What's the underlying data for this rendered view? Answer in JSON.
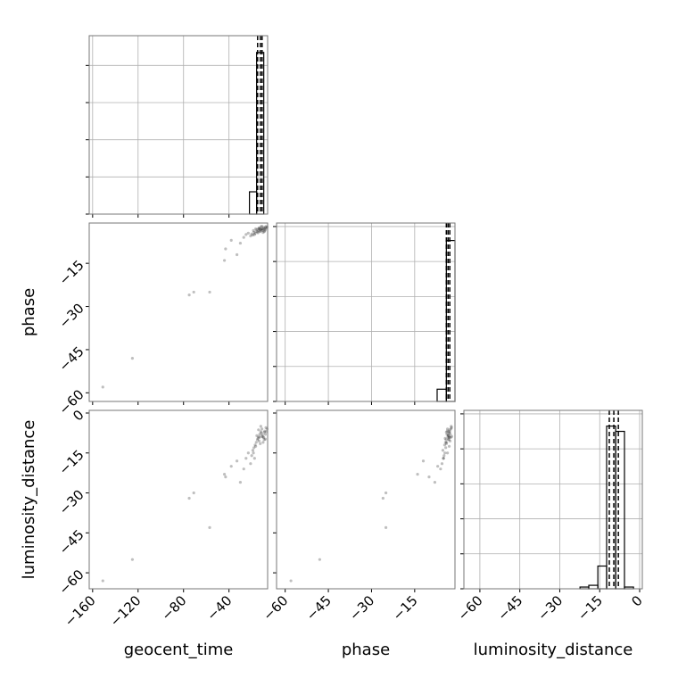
{
  "chart_data": {
    "type": "corner",
    "parameters": [
      {
        "name": "geocent_time",
        "lim": [
          -163,
          -6
        ],
        "ticks": [
          {
            "value": -160,
            "label": "−160"
          },
          {
            "value": -120,
            "label": "−120"
          },
          {
            "value": -80,
            "label": "−80"
          },
          {
            "value": -40,
            "label": "−40"
          }
        ]
      },
      {
        "name": "phase",
        "lim": [
          -63,
          -1
        ],
        "ticks": [
          {
            "value": -60,
            "label": "−60"
          },
          {
            "value": -45,
            "label": "−45"
          },
          {
            "value": -30,
            "label": "−30"
          },
          {
            "value": -15,
            "label": "−15"
          }
        ]
      },
      {
        "name": "luminosity_distance",
        "lim": [
          -66,
          1
        ],
        "ticks": [
          {
            "value": -60,
            "label": "−60"
          },
          {
            "value": -45,
            "label": "−45"
          },
          {
            "value": -30,
            "label": "−30"
          },
          {
            "value": -15,
            "label": "−15"
          },
          0
        ]
      }
    ],
    "samples": {
      "geocent_time": [
        -151,
        -125,
        -75,
        -71,
        -57,
        -44,
        -43,
        -38,
        -33,
        -30,
        -27,
        -25,
        -23,
        -21,
        -20,
        -19,
        -18,
        -17,
        -16,
        -15,
        -14,
        -13,
        -12,
        -11,
        -10,
        -9,
        -8,
        -7,
        -6.5,
        -15.5,
        -14.5,
        -13.5,
        -12.5,
        -11.5,
        -10.5,
        -9.5,
        -8.5,
        -7.5,
        -16.5,
        -18.5,
        -12,
        -10,
        -8,
        -14,
        -17.5,
        -11,
        -9,
        -13
      ],
      "phase": [
        -58,
        -48,
        -26,
        -25,
        -25,
        -14,
        -10,
        -7,
        -12,
        -8,
        -6,
        -5,
        -4.5,
        -5.5,
        -4.8,
        -5.2,
        -4.2,
        -4.6,
        -3.9,
        -4.1,
        -3.5,
        -3.8,
        -3.2,
        -3.6,
        -2.9,
        -3.1,
        -2.6,
        -2.8,
        -2.4,
        -3.3,
        -4.4,
        -2.7,
        -4.0,
        -3.0,
        -3.4,
        -2.5,
        -3.7,
        -2.2,
        -3.0,
        -3.6,
        -2.3,
        -4.3,
        -3.3,
        -2.9,
        -5.0,
        -2.1,
        -4.0,
        -3.1
      ],
      "luminosity_distance": [
        -63,
        -55,
        -32,
        -30,
        -43,
        -23,
        -24,
        -20,
        -18,
        -26,
        -21,
        -17,
        -15,
        -19,
        -16,
        -14,
        -13,
        -12,
        -11,
        -10,
        -9,
        -8,
        -7,
        -6,
        -9,
        -10,
        -8,
        -7,
        -6,
        -8.5,
        -9.5,
        -10.5,
        -11.5,
        -7.5,
        -8.2,
        -9.2,
        -6.8,
        -5.5,
        -12.5,
        -15,
        -5,
        -11,
        -9.8,
        -6.3,
        -17,
        -8.8,
        -7.2,
        -9.1
      ]
    },
    "histograms": [
      {
        "bins": [
          -22,
          -15.7,
          -9.4
        ],
        "counts": [
          12,
          87
        ],
        "ylim": [
          0,
          96
        ],
        "yticks": [
          0,
          20,
          40,
          60,
          80
        ],
        "quantiles": [
          -14.8,
          -12.4,
          -10.9
        ]
      },
      {
        "bins": [
          -7.2,
          -4.0,
          -1
        ],
        "counts": [
          7,
          92
        ],
        "ylim": [
          0,
          102
        ],
        "yticks": [
          0,
          20,
          40,
          60,
          80,
          100
        ],
        "quantiles": [
          -4,
          -3.4,
          -2.8
        ]
      },
      {
        "bins": [
          -22.4,
          -19.1,
          -15.7,
          -12.4,
          -9.0,
          -5.7,
          -2.3
        ],
        "counts": [
          1,
          2,
          13,
          93,
          90,
          1
        ],
        "ylim": [
          0,
          102
        ],
        "yticks": [
          0,
          20,
          40,
          60,
          80,
          100
        ],
        "quantiles": [
          -11.4,
          -9.7,
          -8.0
        ]
      }
    ],
    "point_color": "#000000",
    "line_color": "#000000",
    "grid": true
  }
}
